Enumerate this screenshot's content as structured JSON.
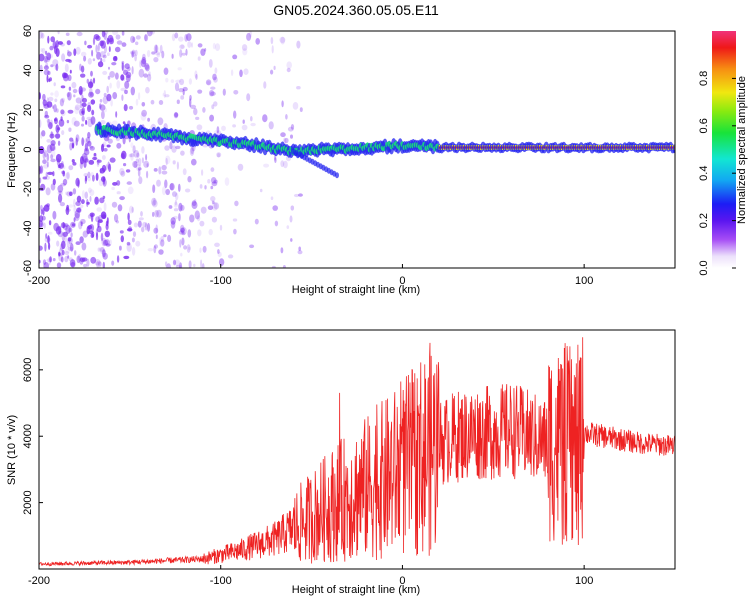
{
  "figure": {
    "title": "GN05.2024.360.05.05.E11"
  },
  "chart_data": [
    {
      "type": "heatmap",
      "xlabel": "Height of straight line (km)",
      "ylabel": "Frequency (Hz)",
      "xlim": [
        -200,
        150
      ],
      "ylim": [
        -60,
        60
      ],
      "x_ticks": [
        "-200",
        "-100",
        "0",
        "100"
      ],
      "y_ticks": [
        "-60",
        "-40",
        "-20",
        "0",
        "20",
        "40",
        "60"
      ],
      "colorbar": {
        "label": "Normalized spectral amplitude",
        "range": [
          0,
          1
        ],
        "ticks": [
          "0.0",
          "0.2",
          "0.4",
          "0.6",
          "0.8"
        ]
      },
      "ridge": {
        "x": [
          -165,
          -140,
          -120,
          -100,
          -80,
          -60,
          -40,
          -20,
          0,
          20,
          40,
          60,
          80,
          100,
          150
        ],
        "frequency": [
          10,
          8,
          6,
          4,
          2,
          -1,
          0,
          1,
          2,
          1,
          1,
          1,
          1,
          1,
          1
        ]
      },
      "colors": {
        "scatter": "#7a2cf0",
        "ridge_core": "#e51c1c",
        "ridge_mid": "#18e07a",
        "ridge_outer": "#2020f0"
      }
    },
    {
      "type": "line",
      "xlabel": "Height of straight line (km)",
      "ylabel": "SNR (10 * v/v)",
      "xlim": [
        -200,
        150
      ],
      "ylim": [
        0,
        7200
      ],
      "x_ticks": [
        "-200",
        "-100",
        "0",
        "100"
      ],
      "y_ticks": [
        "2000",
        "4000",
        "6000"
      ],
      "envelope": {
        "x": [
          -200,
          -150,
          -110,
          -90,
          -70,
          -55,
          -40,
          -25,
          -10,
          0,
          10,
          20,
          30,
          40,
          50,
          60,
          70,
          80,
          90,
          95,
          100,
          110,
          120,
          130,
          150
        ],
        "y": [
          150,
          200,
          300,
          550,
          900,
          1400,
          1900,
          2300,
          2700,
          3000,
          3400,
          3800,
          4000,
          4100,
          4100,
          4200,
          4000,
          3800,
          3800,
          3600,
          4100,
          4000,
          3900,
          3800,
          3700
        ]
      },
      "color": "#ee2222"
    }
  ]
}
